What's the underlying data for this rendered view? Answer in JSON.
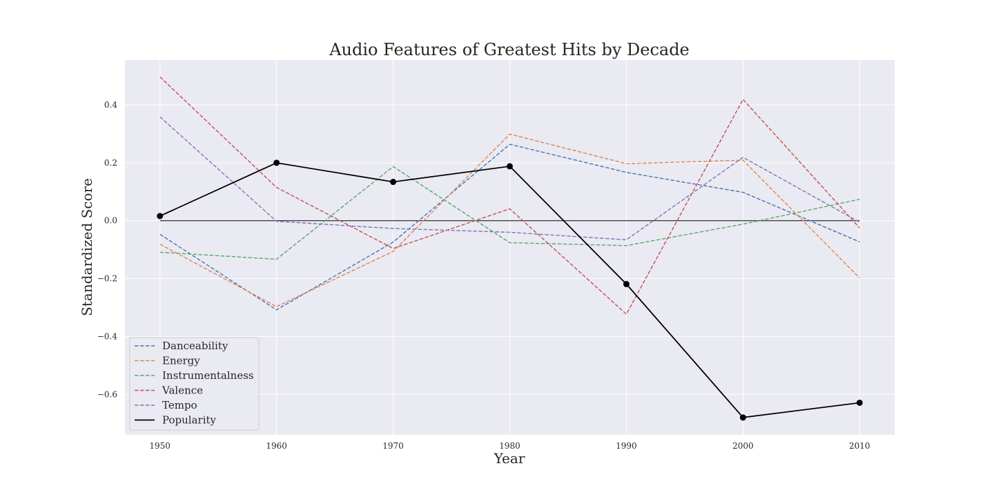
{
  "chart_data": {
    "type": "line",
    "title": "Audio Features of Greatest Hits by Decade",
    "xlabel": "Year",
    "ylabel": "Standardized Score",
    "x": [
      1950,
      1960,
      1970,
      1980,
      1990,
      2000,
      2010
    ],
    "xlim": [
      1947,
      2013
    ],
    "ylim": [
      -0.74,
      0.555
    ],
    "x_ticks": [
      "1950",
      "1960",
      "1970",
      "1980",
      "1990",
      "2000",
      "2010"
    ],
    "y_ticks": [
      -0.6,
      -0.4,
      -0.2,
      0.0,
      0.2,
      0.4
    ],
    "y_tick_labels": [
      "−0.6",
      "−0.4",
      "−0.2",
      "0.0",
      "0.2",
      "0.4"
    ],
    "grid": true,
    "reference_line": 0,
    "legend_placement": "lower-left",
    "series": [
      {
        "name": "Danceability",
        "color": "#4c72b0",
        "style": "dashed",
        "marker": false,
        "values": [
          -0.047,
          -0.308,
          -0.074,
          0.264,
          0.167,
          0.098,
          -0.073
        ]
      },
      {
        "name": "Energy",
        "color": "#dd8452",
        "style": "dashed",
        "marker": false,
        "values": [
          -0.081,
          -0.297,
          -0.106,
          0.299,
          0.197,
          0.209,
          -0.198
        ]
      },
      {
        "name": "Instrumentalness",
        "color": "#55a868",
        "style": "dashed",
        "marker": false,
        "values": [
          -0.109,
          -0.133,
          0.187,
          -0.076,
          -0.086,
          -0.012,
          0.074
        ]
      },
      {
        "name": "Valence",
        "color": "#c44e52",
        "style": "dashed",
        "marker": false,
        "values": [
          0.497,
          0.115,
          -0.096,
          0.041,
          -0.323,
          0.419,
          -0.025
        ]
      },
      {
        "name": "Tempo",
        "color": "#8172b3",
        "style": "dashed",
        "marker": false,
        "values": [
          0.359,
          -0.002,
          -0.027,
          -0.04,
          -0.066,
          0.219,
          -0.005
        ]
      },
      {
        "name": "Popularity",
        "color": "#000000",
        "style": "solid",
        "marker": true,
        "values": [
          0.016,
          0.2,
          0.134,
          0.188,
          -0.219,
          -0.68,
          -0.629
        ]
      }
    ]
  }
}
